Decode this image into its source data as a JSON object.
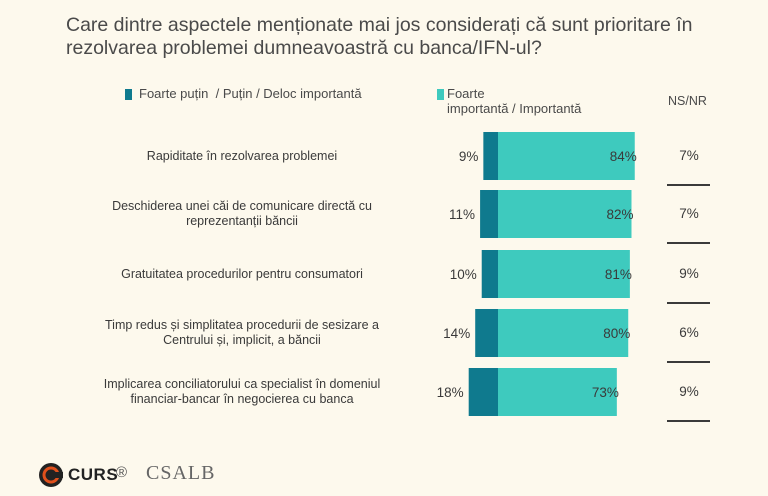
{
  "title": "Care dintre aspectele menționate mai jos considerați că sunt prioritare în rezolvarea problemei dumneavoastră cu banca/IFN-ul?",
  "legend": {
    "item1": "Foarte puțin  / Puțin / Deloc importantă",
    "item2_line1": "Foarte",
    "item2_line2": "importantă / Importantă",
    "nsnr": "NS/NR"
  },
  "colors": {
    "low": "#0f7a8e",
    "high": "#3ecabe",
    "background": "#fdf9ed"
  },
  "chart_data": {
    "type": "bar",
    "orientation": "horizontal-diverging",
    "categories": [
      "Rapiditate în rezolvarea problemei",
      "Deschiderea unei căi de comunicare directă cu reprezentanții băncii",
      "Gratuitatea procedurilor pentru consumatori",
      "Timp redus și simplitatea procedurii de sesizare a Centrului și, implicit, a băncii",
      "Implicarea conciliatorului ca specialist în domeniul financiar-bancar în negocierea cu banca"
    ],
    "category_lines": [
      [
        "Rapiditate în rezolvarea problemei"
      ],
      [
        "Deschiderea unei căi de comunicare directă cu",
        "reprezentanții băncii"
      ],
      [
        "Gratuitatea procedurilor pentru consumatori"
      ],
      [
        "Timp redus și simplitatea procedurii de sesizare a",
        "Centrului și, implicit, a băncii"
      ],
      [
        "Implicarea conciliatorului ca specialist în domeniul",
        "financiar-bancar în negocierea cu banca"
      ]
    ],
    "series": [
      {
        "name": "Foarte puțin  / Puțin / Deloc importantă",
        "values": [
          9,
          11,
          10,
          14,
          18
        ],
        "labels": [
          "9%",
          "11%",
          "10%",
          "14%",
          "18%"
        ]
      },
      {
        "name": "Foarte importantă / Importantă",
        "values": [
          84,
          82,
          81,
          80,
          73
        ],
        "labels": [
          "84%",
          "82%",
          "81%",
          "80%",
          "73%"
        ]
      },
      {
        "name": "NS/NR",
        "values": [
          7,
          7,
          9,
          6,
          9
        ],
        "labels": [
          "7%",
          "7%",
          "9%",
          "6%",
          "9%"
        ]
      }
    ],
    "unit": "%",
    "grid": false,
    "legend_position": "top"
  },
  "footer": {
    "logo1": "CURS",
    "reg": "®",
    "logo2": "CSALB"
  }
}
